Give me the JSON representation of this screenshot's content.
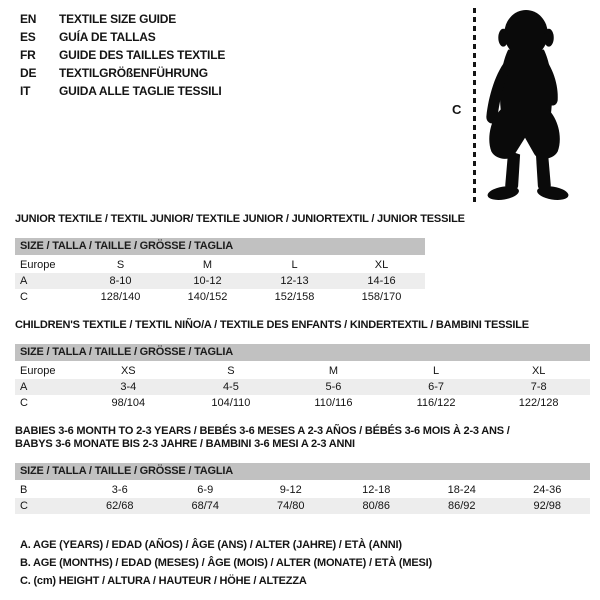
{
  "colors": {
    "header_bar": "#c1c1c1",
    "row_alt": "#ededed",
    "text": "#141414",
    "silhouette": "#0a0a0a"
  },
  "legend": {
    "items": [
      {
        "code": "EN",
        "text": "TEXTILE SIZE GUIDE"
      },
      {
        "code": "ES",
        "text": "GUÍA DE TALLAS"
      },
      {
        "code": "FR",
        "text": "GUIDE DES TAILLES TEXTILE"
      },
      {
        "code": "DE",
        "text": "TEXTILGRÖßENFÜHRUNG"
      },
      {
        "code": "IT",
        "text": "GUIDA ALLE TAGLIE TESSILI"
      }
    ]
  },
  "figure": {
    "measure_label": "C",
    "icon": "toddler-silhouette"
  },
  "tables": [
    {
      "id": "junior",
      "title_lines": [
        "JUNIOR TEXTILE / TEXTIL JUNIOR/ TEXTILE JUNIOR / JUNIORTEXTIL / JUNIOR TESSILE"
      ],
      "header": "SIZE / TALLA / TAILLE / GRÖSSE / TAGLIA",
      "rows": [
        {
          "label": "Europe",
          "cells": [
            "S",
            "M",
            "L",
            "XL"
          ]
        },
        {
          "label": "A",
          "cells": [
            "8-10",
            "10-12",
            "12-13",
            "14-16"
          ]
        },
        {
          "label": "C",
          "cells": [
            "128/140",
            "140/152",
            "152/158",
            "158/170"
          ]
        }
      ]
    },
    {
      "id": "children",
      "title_lines": [
        "CHILDREN'S TEXTILE / TEXTIL NIÑO/A / TEXTILE DES ENFANTS / KINDERTEXTIL / BAMBINI TESSILE"
      ],
      "header": "SIZE / TALLA / TAILLE / GRÖSSE / TAGLIA",
      "rows": [
        {
          "label": "Europe",
          "cells": [
            "XS",
            "S",
            "M",
            "L",
            "XL"
          ]
        },
        {
          "label": "A",
          "cells": [
            "3-4",
            "4-5",
            "5-6",
            "6-7",
            "7-8"
          ]
        },
        {
          "label": "C",
          "cells": [
            "98/104",
            "104/110",
            "110/116",
            "116/122",
            "122/128"
          ]
        }
      ]
    },
    {
      "id": "babies",
      "title_lines": [
        "BABIES 3-6 MONTH TO 2-3 YEARS / BEBÉS 3-6 MESES A 2-3 AÑOS / BÉBÉS 3-6 MOIS À 2-3 ANS /",
        "BABYS 3-6 MONATE BIS 2-3 JAHRE / BAMBINI 3-6 MESI A 2-3 ANNI"
      ],
      "header": "SIZE / TALLA / TAILLE / GRÖSSE / TAGLIA",
      "rows": [
        {
          "label": "B",
          "cells": [
            "3-6",
            "6-9",
            "9-12",
            "12-18",
            "18-24",
            "24-36"
          ]
        },
        {
          "label": "C",
          "cells": [
            "62/68",
            "68/74",
            "74/80",
            "80/86",
            "86/92",
            "92/98"
          ]
        }
      ]
    }
  ],
  "footnotes": [
    "A. AGE (YEARS) / EDAD (AÑOS) / ÂGE (ANS) / ALTER (JAHRE) / ETÀ (ANNI)",
    "B. AGE (MONTHS) / EDAD (MESES) / ÂGE (MOIS) / ALTER (MONATE) / ETÀ (MESI)",
    "C. (cm) HEIGHT / ALTURA / HAUTEUR / HÖHE / ALTEZZA"
  ]
}
